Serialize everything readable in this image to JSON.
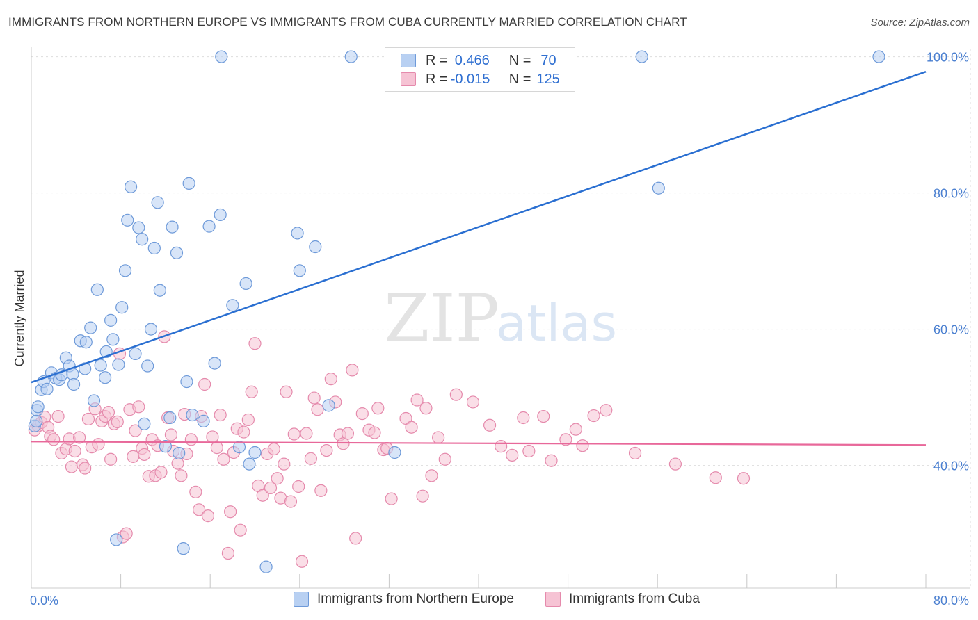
{
  "header": {
    "title": "IMMIGRANTS FROM NORTHERN EUROPE VS IMMIGRANTS FROM CUBA CURRENTLY MARRIED CORRELATION CHART",
    "source": "Source: ZipAtlas.com"
  },
  "watermark": {
    "zip": "ZIP",
    "atlas": "atlas"
  },
  "legend": {
    "rows": [
      {
        "r_label": "R =",
        "r_value": "0.466",
        "n_label": "N =",
        "n_value": "70"
      },
      {
        "r_label": "R =",
        "r_value": "-0.015",
        "n_label": "N =",
        "n_value": "125"
      }
    ]
  },
  "bottom_legend": {
    "items": [
      "Immigrants from Northern Europe",
      "Immigrants from Cuba"
    ]
  },
  "colors": {
    "blue_fill": "#b8d0f2",
    "blue_stroke": "#6e9ad9",
    "blue_line": "#2a6fd1",
    "pink_fill": "#f6c3d4",
    "pink_stroke": "#e58aac",
    "pink_line": "#e8689a",
    "grid": "#dddddd",
    "tick_text": "#4a7fd0"
  },
  "chart_data": {
    "type": "scatter",
    "title": "IMMIGRANTS FROM NORTHERN EUROPE VS IMMIGRANTS FROM CUBA CURRENTLY MARRIED CORRELATION CHART",
    "xlabel": "",
    "ylabel": "Currently Married",
    "xlim": [
      0,
      80
    ],
    "ylim": [
      22,
      102
    ],
    "x_tick_labels": [
      "0.0%",
      "80.0%"
    ],
    "y_ticks": [
      {
        "value": 40,
        "label": "40.0%"
      },
      {
        "value": 60,
        "label": "60.0%"
      },
      {
        "value": 80,
        "label": "80.0%"
      },
      {
        "value": 100,
        "label": "100.0%"
      }
    ],
    "grid": true,
    "legend_position": "top-center",
    "series": [
      {
        "name": "Immigrants from Northern Europe",
        "color": "#6e9ad9",
        "trend": {
          "x": [
            0,
            80
          ],
          "y": [
            52.2,
            97.8
          ]
        },
        "points": [
          [
            0.5,
            48.1
          ],
          [
            0.6,
            48.6
          ],
          [
            0.9,
            51.1
          ],
          [
            1.1,
            52.3
          ],
          [
            1.4,
            51.2
          ],
          [
            1.8,
            53.6
          ],
          [
            2.2,
            52.8
          ],
          [
            2.5,
            52.6
          ],
          [
            2.7,
            53.3
          ],
          [
            3.1,
            55.8
          ],
          [
            3.4,
            54.6
          ],
          [
            3.7,
            53.4
          ],
          [
            3.8,
            51.9
          ],
          [
            4.4,
            58.3
          ],
          [
            4.8,
            54.2
          ],
          [
            4.9,
            58.1
          ],
          [
            5.3,
            60.2
          ],
          [
            5.6,
            49.5
          ],
          [
            5.9,
            65.8
          ],
          [
            6.2,
            54.7
          ],
          [
            6.6,
            52.9
          ],
          [
            6.7,
            56.7
          ],
          [
            7.1,
            61.3
          ],
          [
            7.3,
            58.5
          ],
          [
            7.6,
            29.1
          ],
          [
            7.8,
            54.8
          ],
          [
            8.1,
            63.2
          ],
          [
            8.4,
            68.6
          ],
          [
            8.6,
            76.0
          ],
          [
            8.9,
            80.9
          ],
          [
            9.3,
            56.4
          ],
          [
            9.6,
            74.9
          ],
          [
            9.9,
            73.2
          ],
          [
            10.1,
            46.1
          ],
          [
            10.4,
            54.6
          ],
          [
            10.7,
            60.0
          ],
          [
            11.0,
            71.9
          ],
          [
            11.3,
            78.6
          ],
          [
            11.5,
            65.7
          ],
          [
            12.0,
            42.8
          ],
          [
            12.4,
            47.0
          ],
          [
            12.6,
            75.0
          ],
          [
            13.0,
            71.2
          ],
          [
            13.2,
            41.8
          ],
          [
            13.6,
            27.8
          ],
          [
            13.9,
            52.3
          ],
          [
            14.1,
            81.4
          ],
          [
            14.4,
            47.4
          ],
          [
            15.4,
            46.5
          ],
          [
            15.9,
            75.1
          ],
          [
            16.4,
            55.0
          ],
          [
            16.9,
            76.8
          ],
          [
            18.0,
            63.5
          ],
          [
            18.6,
            42.7
          ],
          [
            19.2,
            66.7
          ],
          [
            19.5,
            40.2
          ],
          [
            20.0,
            41.9
          ],
          [
            21.0,
            25.1
          ],
          [
            23.8,
            74.1
          ],
          [
            24.0,
            68.6
          ],
          [
            25.4,
            72.1
          ],
          [
            26.6,
            48.8
          ],
          [
            32.5,
            41.9
          ],
          [
            17.0,
            100
          ],
          [
            28.6,
            100
          ],
          [
            54.6,
            100
          ],
          [
            56.1,
            80.7
          ],
          [
            75.8,
            100
          ],
          [
            0.3,
            45.8
          ],
          [
            0.45,
            46.5
          ]
        ]
      },
      {
        "name": "Immigrants from Cuba",
        "color": "#e58aac",
        "trend": {
          "x": [
            0,
            80
          ],
          "y": [
            43.5,
            43.0
          ]
        },
        "points": [
          [
            0.3,
            45.2
          ],
          [
            0.6,
            45.8
          ],
          [
            0.9,
            46.3
          ],
          [
            1.2,
            47.1
          ],
          [
            1.5,
            45.6
          ],
          [
            1.7,
            44.3
          ],
          [
            2.0,
            43.8
          ],
          [
            2.4,
            47.2
          ],
          [
            2.7,
            41.8
          ],
          [
            3.1,
            42.4
          ],
          [
            3.4,
            43.9
          ],
          [
            3.6,
            39.8
          ],
          [
            3.9,
            42.1
          ],
          [
            4.3,
            44.1
          ],
          [
            4.6,
            40.1
          ],
          [
            4.8,
            39.6
          ],
          [
            5.1,
            46.8
          ],
          [
            5.4,
            42.7
          ],
          [
            5.7,
            48.3
          ],
          [
            6.0,
            43.1
          ],
          [
            6.3,
            46.5
          ],
          [
            6.6,
            47.2
          ],
          [
            6.9,
            47.8
          ],
          [
            7.1,
            40.9
          ],
          [
            7.4,
            46.1
          ],
          [
            7.7,
            46.4
          ],
          [
            7.9,
            56.4
          ],
          [
            8.2,
            29.5
          ],
          [
            8.5,
            30.0
          ],
          [
            8.8,
            48.2
          ],
          [
            9.1,
            41.3
          ],
          [
            9.3,
            45.1
          ],
          [
            9.6,
            48.6
          ],
          [
            9.9,
            42.5
          ],
          [
            10.1,
            41.6
          ],
          [
            10.5,
            38.4
          ],
          [
            10.8,
            43.8
          ],
          [
            11.1,
            38.5
          ],
          [
            11.3,
            42.9
          ],
          [
            11.6,
            39.0
          ],
          [
            11.9,
            58.9
          ],
          [
            12.2,
            47.0
          ],
          [
            12.5,
            44.5
          ],
          [
            12.7,
            42.1
          ],
          [
            13.1,
            40.3
          ],
          [
            13.4,
            38.5
          ],
          [
            13.7,
            47.5
          ],
          [
            13.9,
            41.7
          ],
          [
            14.3,
            43.8
          ],
          [
            14.7,
            36.1
          ],
          [
            15.0,
            33.5
          ],
          [
            15.2,
            47.2
          ],
          [
            15.5,
            51.9
          ],
          [
            15.8,
            32.6
          ],
          [
            16.2,
            44.2
          ],
          [
            16.6,
            42.6
          ],
          [
            16.9,
            47.4
          ],
          [
            17.2,
            40.9
          ],
          [
            17.6,
            27.1
          ],
          [
            17.8,
            33.2
          ],
          [
            18.1,
            41.9
          ],
          [
            18.4,
            45.4
          ],
          [
            18.7,
            30.5
          ],
          [
            19.0,
            44.9
          ],
          [
            19.4,
            46.7
          ],
          [
            19.7,
            50.8
          ],
          [
            20.0,
            57.9
          ],
          [
            20.3,
            37.0
          ],
          [
            20.7,
            35.6
          ],
          [
            21.1,
            41.7
          ],
          [
            21.4,
            36.7
          ],
          [
            21.7,
            42.4
          ],
          [
            22.0,
            38.1
          ],
          [
            22.3,
            35.2
          ],
          [
            22.6,
            40.2
          ],
          [
            22.8,
            50.8
          ],
          [
            23.2,
            34.7
          ],
          [
            23.5,
            44.6
          ],
          [
            23.9,
            36.9
          ],
          [
            24.2,
            25.9
          ],
          [
            24.6,
            44.7
          ],
          [
            25.0,
            41.0
          ],
          [
            25.3,
            49.9
          ],
          [
            25.6,
            48.2
          ],
          [
            25.9,
            36.3
          ],
          [
            26.4,
            42.2
          ],
          [
            26.8,
            52.7
          ],
          [
            27.2,
            49.3
          ],
          [
            27.6,
            44.5
          ],
          [
            27.9,
            43.2
          ],
          [
            28.3,
            44.7
          ],
          [
            28.7,
            54.0
          ],
          [
            29.0,
            29.3
          ],
          [
            29.6,
            47.6
          ],
          [
            30.2,
            45.2
          ],
          [
            30.7,
            44.8
          ],
          [
            31.0,
            48.4
          ],
          [
            31.5,
            42.3
          ],
          [
            31.8,
            42.5
          ],
          [
            32.2,
            35.1
          ],
          [
            33.5,
            46.9
          ],
          [
            34.0,
            45.6
          ],
          [
            34.5,
            49.6
          ],
          [
            35.0,
            35.5
          ],
          [
            35.3,
            48.4
          ],
          [
            35.8,
            38.5
          ],
          [
            36.4,
            44.1
          ],
          [
            37.0,
            40.9
          ],
          [
            38.0,
            50.4
          ],
          [
            39.5,
            49.3
          ],
          [
            41.0,
            45.9
          ],
          [
            42.0,
            42.8
          ],
          [
            43.0,
            41.5
          ],
          [
            44.0,
            47.0
          ],
          [
            44.5,
            42.1
          ],
          [
            45.8,
            47.2
          ],
          [
            46.5,
            40.7
          ],
          [
            47.8,
            43.8
          ],
          [
            48.7,
            45.3
          ],
          [
            49.3,
            42.9
          ],
          [
            50.3,
            47.3
          ],
          [
            51.4,
            48.1
          ],
          [
            54.0,
            41.8
          ],
          [
            57.6,
            40.2
          ],
          [
            61.2,
            38.2
          ],
          [
            63.7,
            38.1
          ]
        ]
      }
    ]
  }
}
